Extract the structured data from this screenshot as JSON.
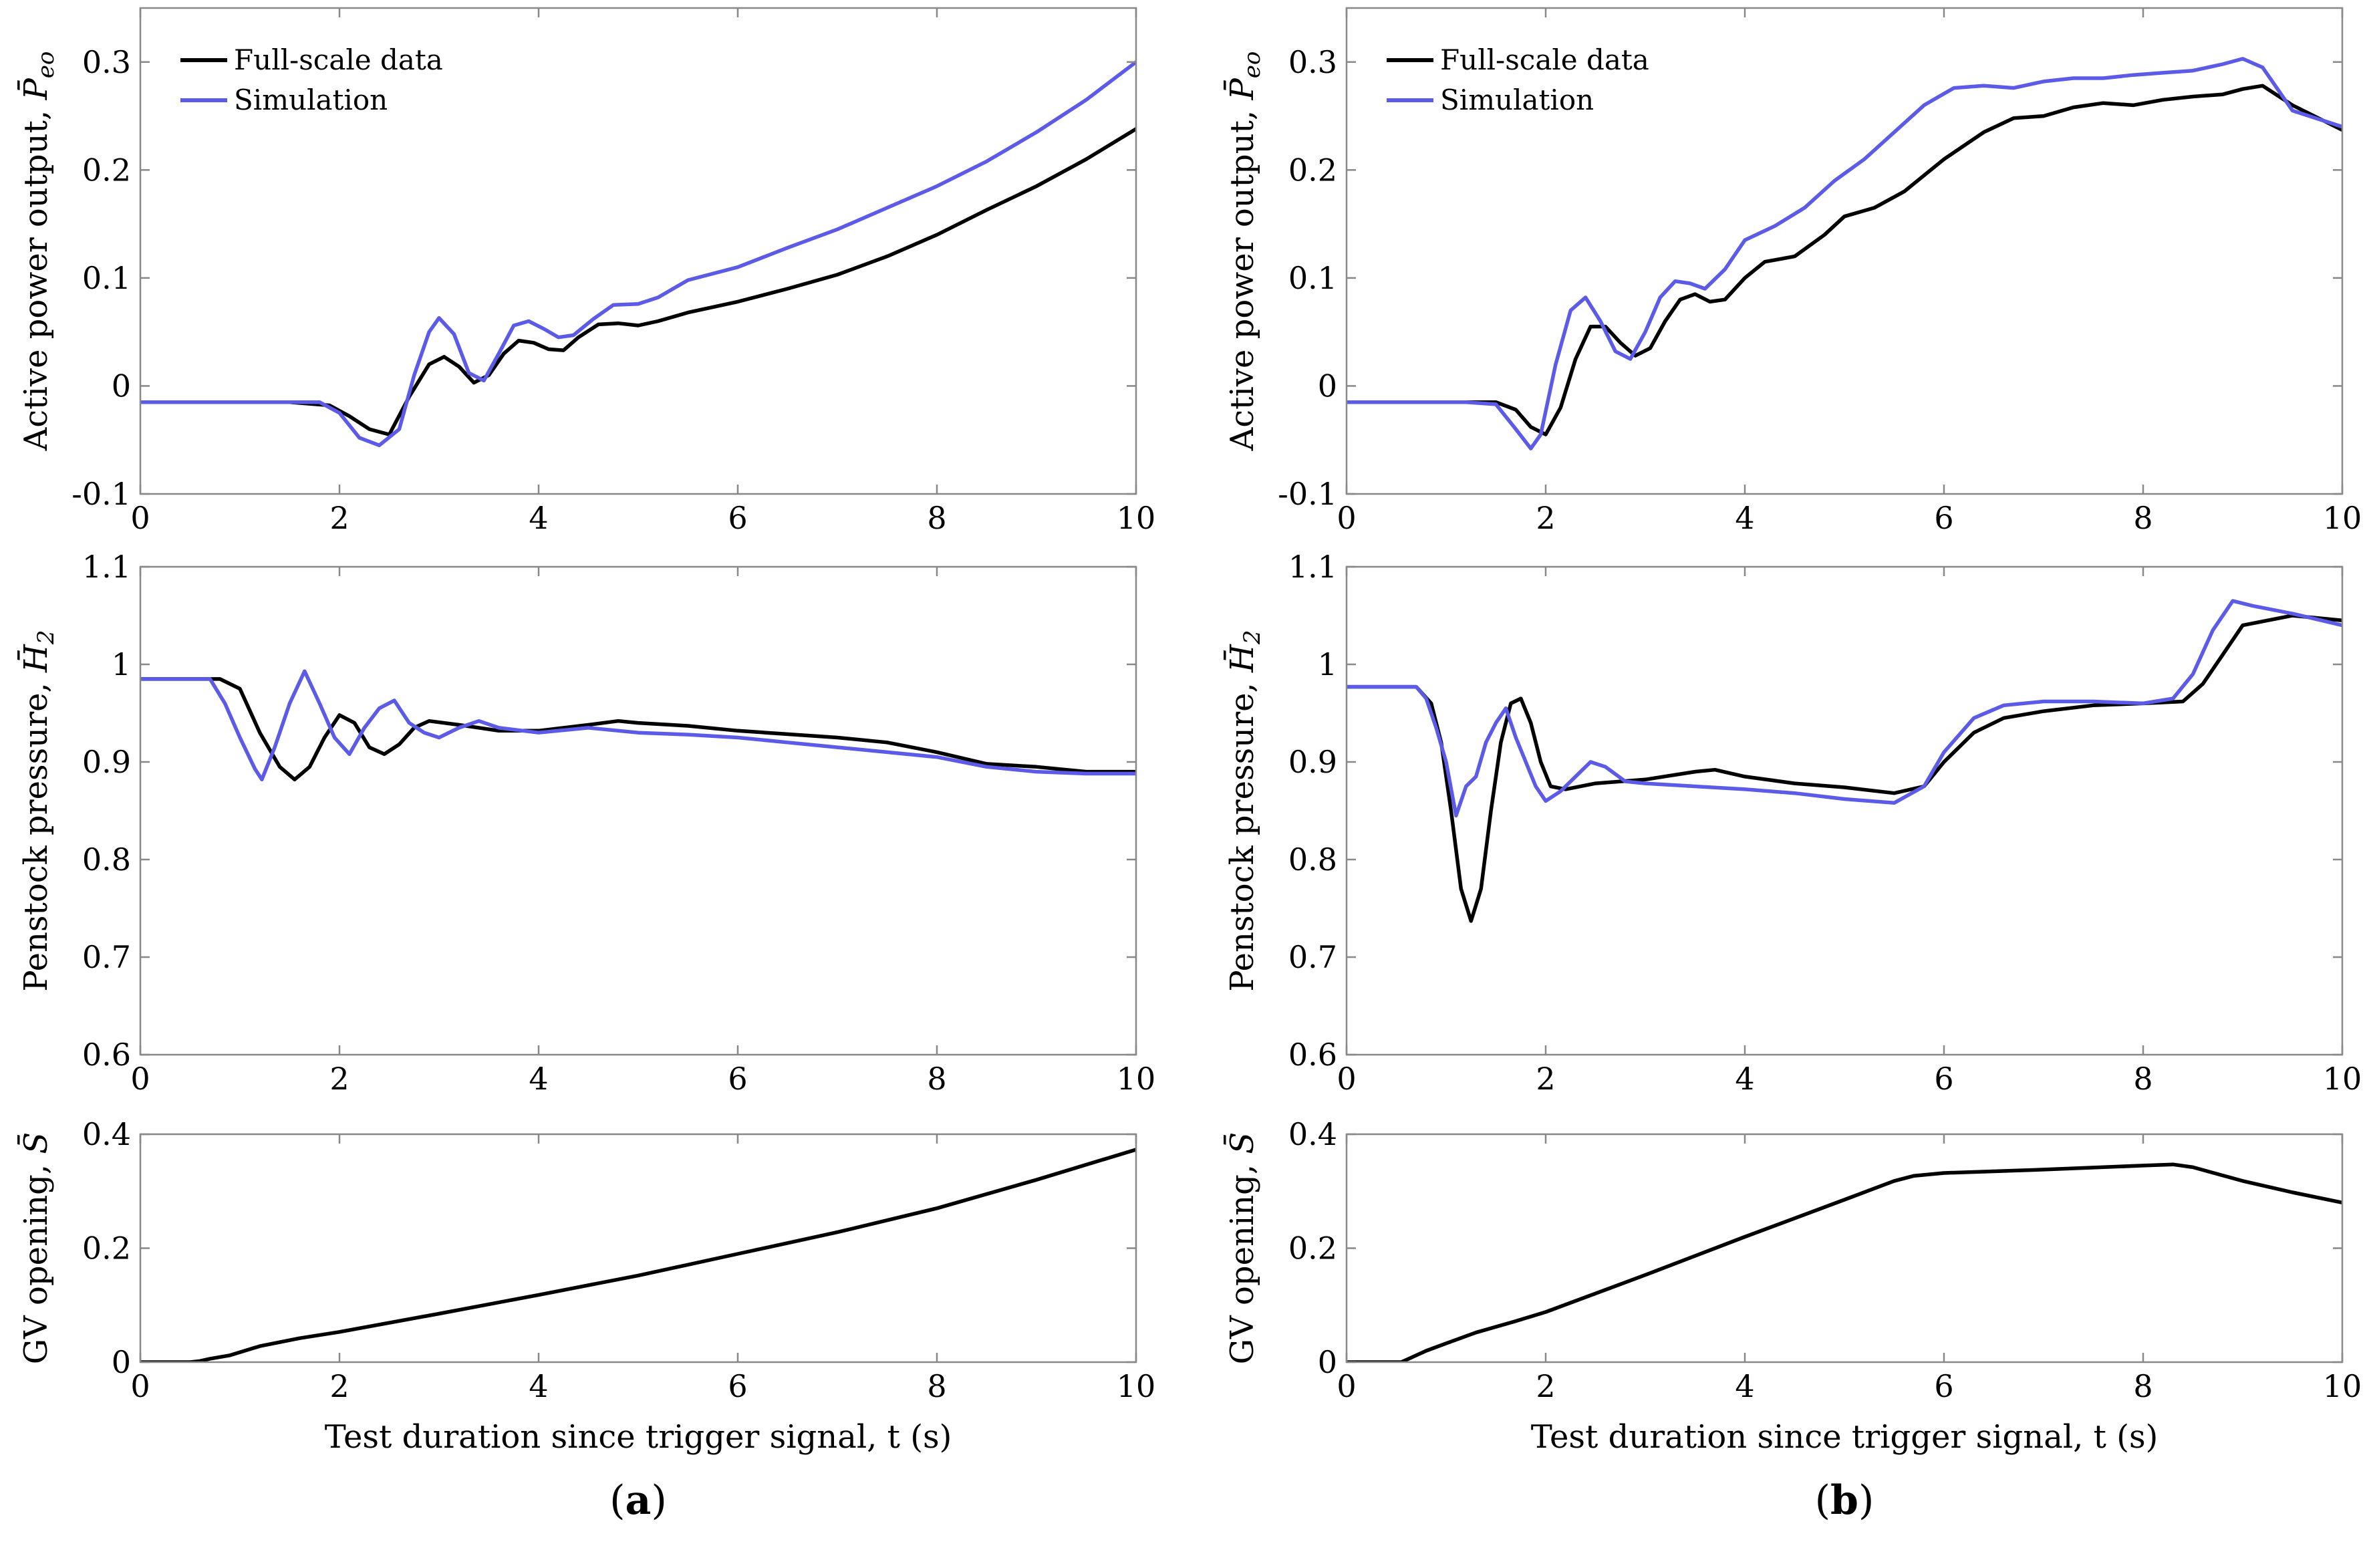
{
  "colors": {
    "full_scale": "#000000",
    "simulation": "#5b5be8",
    "frame": "#888888"
  },
  "panel_labels": [
    "(a)",
    "(b)"
  ],
  "chart_data": [
    {
      "panel": "(a)",
      "row": 1,
      "type": "line",
      "ylabel_text": "Active power output, ",
      "ylabel_symbol": "P̄",
      "ylabel_sub": "eo",
      "xlabel": "",
      "xlim": [
        0,
        10
      ],
      "ylim": [
        -0.1,
        0.35
      ],
      "xticks": [
        "0",
        "2",
        "4",
        "6",
        "8",
        "10"
      ],
      "yticks": [
        "-0.1",
        "0",
        "0.1",
        "0.2",
        "0.3"
      ],
      "ytick_values": [
        -0.1,
        0,
        0.1,
        0.2,
        0.3
      ],
      "legend": [
        "Full-scale data",
        "Simulation"
      ],
      "series": [
        {
          "name": "Full-scale data",
          "color": "#000000",
          "x": [
            0,
            1.5,
            1.9,
            2.1,
            2.3,
            2.5,
            2.7,
            2.9,
            3.05,
            3.2,
            3.35,
            3.5,
            3.65,
            3.8,
            3.95,
            4.1,
            4.25,
            4.4,
            4.6,
            4.8,
            5.0,
            5.2,
            5.5,
            6.0,
            6.5,
            7.0,
            7.5,
            8.0,
            8.5,
            9.0,
            9.5,
            10.0
          ],
          "y": [
            -0.015,
            -0.015,
            -0.018,
            -0.028,
            -0.04,
            -0.045,
            -0.01,
            0.02,
            0.027,
            0.018,
            0.003,
            0.01,
            0.03,
            0.042,
            0.04,
            0.034,
            0.033,
            0.045,
            0.057,
            0.058,
            0.056,
            0.06,
            0.068,
            0.078,
            0.09,
            0.103,
            0.12,
            0.14,
            0.163,
            0.185,
            0.21,
            0.238
          ]
        },
        {
          "name": "Simulation",
          "color": "#5b5be8",
          "x": [
            0,
            1.8,
            2.0,
            2.2,
            2.4,
            2.6,
            2.75,
            2.9,
            3.0,
            3.15,
            3.3,
            3.45,
            3.6,
            3.75,
            3.9,
            4.05,
            4.2,
            4.35,
            4.55,
            4.75,
            5.0,
            5.2,
            5.5,
            6.0,
            6.5,
            7.0,
            7.5,
            8.0,
            8.5,
            9.0,
            9.5,
            10.0
          ],
          "y": [
            -0.015,
            -0.015,
            -0.025,
            -0.048,
            -0.055,
            -0.04,
            0.01,
            0.05,
            0.063,
            0.048,
            0.012,
            0.005,
            0.03,
            0.056,
            0.06,
            0.053,
            0.045,
            0.047,
            0.062,
            0.075,
            0.076,
            0.082,
            0.098,
            0.11,
            0.128,
            0.145,
            0.165,
            0.185,
            0.208,
            0.235,
            0.265,
            0.3
          ]
        }
      ]
    },
    {
      "panel": "(a)",
      "row": 2,
      "type": "line",
      "ylabel_text": "Penstock pressure, ",
      "ylabel_symbol": "H̄",
      "ylabel_sub": "2",
      "xlabel": "",
      "xlim": [
        0,
        10
      ],
      "ylim": [
        0.6,
        1.1
      ],
      "xticks": [
        "0",
        "2",
        "4",
        "6",
        "8",
        "10"
      ],
      "yticks": [
        "0.6",
        "0.7",
        "0.8",
        "0.9",
        "1",
        "1.1"
      ],
      "ytick_values": [
        0.6,
        0.7,
        0.8,
        0.9,
        1.0,
        1.1
      ],
      "series": [
        {
          "name": "Full-scale data",
          "color": "#000000",
          "x": [
            0,
            0.8,
            1.0,
            1.2,
            1.4,
            1.55,
            1.7,
            1.85,
            2.0,
            2.15,
            2.3,
            2.45,
            2.6,
            2.75,
            2.9,
            3.2,
            3.6,
            4.0,
            4.5,
            4.8,
            5.0,
            5.5,
            6.0,
            7.0,
            7.5,
            8.0,
            8.5,
            9.0,
            9.5,
            10.0
          ],
          "y": [
            0.985,
            0.985,
            0.975,
            0.93,
            0.895,
            0.882,
            0.895,
            0.925,
            0.948,
            0.94,
            0.915,
            0.908,
            0.918,
            0.935,
            0.942,
            0.938,
            0.932,
            0.932,
            0.938,
            0.942,
            0.94,
            0.937,
            0.932,
            0.925,
            0.92,
            0.91,
            0.898,
            0.895,
            0.89,
            0.89
          ]
        },
        {
          "name": "Simulation",
          "color": "#5b5be8",
          "x": [
            0,
            0.7,
            0.85,
            1.0,
            1.15,
            1.22,
            1.35,
            1.5,
            1.65,
            1.8,
            1.95,
            2.1,
            2.25,
            2.4,
            2.55,
            2.7,
            2.85,
            3.0,
            3.2,
            3.4,
            3.6,
            4.0,
            4.5,
            5.0,
            5.5,
            6.0,
            6.5,
            7.0,
            7.5,
            8.0,
            8.5,
            9.0,
            9.5,
            10.0
          ],
          "y": [
            0.985,
            0.985,
            0.96,
            0.925,
            0.893,
            0.882,
            0.915,
            0.96,
            0.993,
            0.96,
            0.925,
            0.908,
            0.935,
            0.955,
            0.963,
            0.94,
            0.93,
            0.925,
            0.935,
            0.942,
            0.935,
            0.93,
            0.935,
            0.93,
            0.928,
            0.925,
            0.92,
            0.915,
            0.91,
            0.905,
            0.895,
            0.89,
            0.888,
            0.888
          ]
        }
      ]
    },
    {
      "panel": "(a)",
      "row": 3,
      "type": "line",
      "ylabel_text": "GV opening, ",
      "ylabel_symbol": "S̄",
      "ylabel_sub": "",
      "xlabel": "Test duration since trigger signal, t (s)",
      "xlim": [
        0,
        10
      ],
      "ylim": [
        0,
        0.4
      ],
      "xticks": [
        "0",
        "2",
        "4",
        "6",
        "8",
        "10"
      ],
      "yticks": [
        "0",
        "0.2",
        "0.4"
      ],
      "ytick_values": [
        0,
        0.2,
        0.4
      ],
      "series": [
        {
          "name": "GV opening",
          "color": "#000000",
          "x": [
            0,
            0.5,
            0.6,
            0.7,
            0.9,
            1.2,
            1.6,
            2.0,
            3.0,
            4.0,
            5.0,
            6.0,
            7.0,
            8.0,
            9.0,
            10.0
          ],
          "y": [
            0,
            0,
            0.002,
            0.006,
            0.012,
            0.028,
            0.042,
            0.053,
            0.085,
            0.118,
            0.152,
            0.19,
            0.228,
            0.27,
            0.32,
            0.373
          ]
        }
      ]
    },
    {
      "panel": "(b)",
      "row": 1,
      "type": "line",
      "ylabel_text": "Active power output, ",
      "ylabel_symbol": "P̄",
      "ylabel_sub": "eo",
      "xlabel": "",
      "xlim": [
        0,
        10
      ],
      "ylim": [
        -0.1,
        0.35
      ],
      "xticks": [
        "0",
        "2",
        "4",
        "6",
        "8",
        "10"
      ],
      "yticks": [
        "-0.1",
        "0",
        "0.1",
        "0.2",
        "0.3"
      ],
      "ytick_values": [
        -0.1,
        0,
        0.1,
        0.2,
        0.3
      ],
      "legend": [
        "Full-scale data",
        "Simulation"
      ],
      "series": [
        {
          "name": "Full-scale data",
          "color": "#000000",
          "x": [
            0,
            1.5,
            1.7,
            1.85,
            2.0,
            2.15,
            2.3,
            2.45,
            2.6,
            2.75,
            2.9,
            3.05,
            3.2,
            3.35,
            3.5,
            3.65,
            3.8,
            4.0,
            4.2,
            4.5,
            4.8,
            5.0,
            5.3,
            5.6,
            6.0,
            6.4,
            6.7,
            7.0,
            7.3,
            7.6,
            7.9,
            8.2,
            8.5,
            8.8,
            9.0,
            9.2,
            9.5,
            10.0
          ],
          "y": [
            -0.015,
            -0.015,
            -0.022,
            -0.038,
            -0.045,
            -0.02,
            0.025,
            0.055,
            0.055,
            0.04,
            0.028,
            0.035,
            0.06,
            0.08,
            0.085,
            0.078,
            0.08,
            0.1,
            0.115,
            0.12,
            0.14,
            0.157,
            0.165,
            0.18,
            0.21,
            0.235,
            0.248,
            0.25,
            0.258,
            0.262,
            0.26,
            0.265,
            0.268,
            0.27,
            0.275,
            0.278,
            0.26,
            0.237
          ]
        },
        {
          "name": "Simulation",
          "color": "#5b5be8",
          "x": [
            0,
            1.2,
            1.5,
            1.7,
            1.85,
            1.95,
            2.1,
            2.25,
            2.4,
            2.55,
            2.7,
            2.85,
            3.0,
            3.15,
            3.3,
            3.45,
            3.6,
            3.8,
            4.0,
            4.3,
            4.6,
            4.9,
            5.2,
            5.5,
            5.8,
            6.1,
            6.4,
            6.7,
            7.0,
            7.3,
            7.6,
            7.9,
            8.2,
            8.5,
            8.8,
            9.0,
            9.2,
            9.5,
            10.0
          ],
          "y": [
            -0.015,
            -0.015,
            -0.017,
            -0.04,
            -0.058,
            -0.045,
            0.02,
            0.07,
            0.082,
            0.06,
            0.032,
            0.025,
            0.05,
            0.082,
            0.097,
            0.095,
            0.09,
            0.108,
            0.135,
            0.148,
            0.165,
            0.19,
            0.21,
            0.235,
            0.26,
            0.276,
            0.278,
            0.276,
            0.282,
            0.285,
            0.285,
            0.288,
            0.29,
            0.292,
            0.298,
            0.303,
            0.295,
            0.255,
            0.24
          ]
        }
      ]
    },
    {
      "panel": "(b)",
      "row": 2,
      "type": "line",
      "ylabel_text": "Penstock pressure, ",
      "ylabel_symbol": "H̄",
      "ylabel_sub": "2",
      "xlabel": "",
      "xlim": [
        0,
        10
      ],
      "ylim": [
        0.6,
        1.1
      ],
      "xticks": [
        "0",
        "2",
        "4",
        "6",
        "8",
        "10"
      ],
      "yticks": [
        "0.6",
        "0.7",
        "0.8",
        "0.9",
        "1",
        "1.1"
      ],
      "ytick_values": [
        0.6,
        0.7,
        0.8,
        0.9,
        1.0,
        1.1
      ],
      "series": [
        {
          "name": "Full-scale data",
          "color": "#000000",
          "x": [
            0,
            0.7,
            0.85,
            0.95,
            1.05,
            1.15,
            1.25,
            1.35,
            1.45,
            1.55,
            1.65,
            1.75,
            1.85,
            1.95,
            2.05,
            2.2,
            2.5,
            3.0,
            3.5,
            3.7,
            4.0,
            4.5,
            5.0,
            5.5,
            5.8,
            6.0,
            6.3,
            6.6,
            7.0,
            7.5,
            8.0,
            8.4,
            8.6,
            8.8,
            9.0,
            9.5,
            10.0
          ],
          "y": [
            0.977,
            0.977,
            0.96,
            0.92,
            0.85,
            0.77,
            0.737,
            0.77,
            0.85,
            0.92,
            0.96,
            0.965,
            0.94,
            0.9,
            0.875,
            0.872,
            0.878,
            0.882,
            0.89,
            0.892,
            0.885,
            0.878,
            0.874,
            0.868,
            0.875,
            0.9,
            0.93,
            0.945,
            0.952,
            0.958,
            0.96,
            0.962,
            0.98,
            1.01,
            1.04,
            1.05,
            1.045
          ]
        },
        {
          "name": "Simulation",
          "color": "#5b5be8",
          "x": [
            0,
            0.7,
            0.8,
            0.9,
            1.0,
            1.1,
            1.2,
            1.3,
            1.4,
            1.5,
            1.6,
            1.7,
            1.8,
            1.9,
            2.0,
            2.15,
            2.3,
            2.45,
            2.6,
            2.8,
            3.0,
            3.5,
            4.0,
            4.5,
            5.0,
            5.5,
            5.8,
            6.0,
            6.3,
            6.6,
            7.0,
            7.5,
            8.0,
            8.3,
            8.5,
            8.7,
            8.9,
            9.1,
            9.5,
            10.0
          ],
          "y": [
            0.977,
            0.977,
            0.965,
            0.935,
            0.9,
            0.845,
            0.875,
            0.885,
            0.92,
            0.94,
            0.955,
            0.925,
            0.9,
            0.875,
            0.86,
            0.87,
            0.885,
            0.9,
            0.895,
            0.88,
            0.878,
            0.875,
            0.872,
            0.868,
            0.862,
            0.858,
            0.875,
            0.91,
            0.945,
            0.958,
            0.962,
            0.962,
            0.96,
            0.965,
            0.99,
            1.035,
            1.065,
            1.06,
            1.052,
            1.04
          ]
        }
      ]
    },
    {
      "panel": "(b)",
      "row": 3,
      "type": "line",
      "ylabel_text": "GV opening, ",
      "ylabel_symbol": "S̄",
      "ylabel_sub": "",
      "xlabel": "Test duration since trigger signal, t (s)",
      "xlim": [
        0,
        10
      ],
      "ylim": [
        0,
        0.4
      ],
      "xticks": [
        "0",
        "2",
        "4",
        "6",
        "8",
        "10"
      ],
      "yticks": [
        "0",
        "0.2",
        "0.4"
      ],
      "ytick_values": [
        0,
        0.2,
        0.4
      ],
      "series": [
        {
          "name": "GV opening",
          "color": "#000000",
          "x": [
            0,
            0.55,
            0.65,
            0.8,
            1.0,
            1.3,
            1.7,
            2.0,
            3.0,
            4.0,
            5.0,
            5.5,
            5.7,
            6.0,
            7.0,
            8.0,
            8.3,
            8.5,
            9.0,
            9.5,
            10.0
          ],
          "y": [
            0,
            0,
            0.008,
            0.02,
            0.033,
            0.052,
            0.072,
            0.088,
            0.153,
            0.22,
            0.285,
            0.318,
            0.327,
            0.332,
            0.338,
            0.345,
            0.347,
            0.342,
            0.318,
            0.298,
            0.28
          ]
        }
      ]
    }
  ]
}
